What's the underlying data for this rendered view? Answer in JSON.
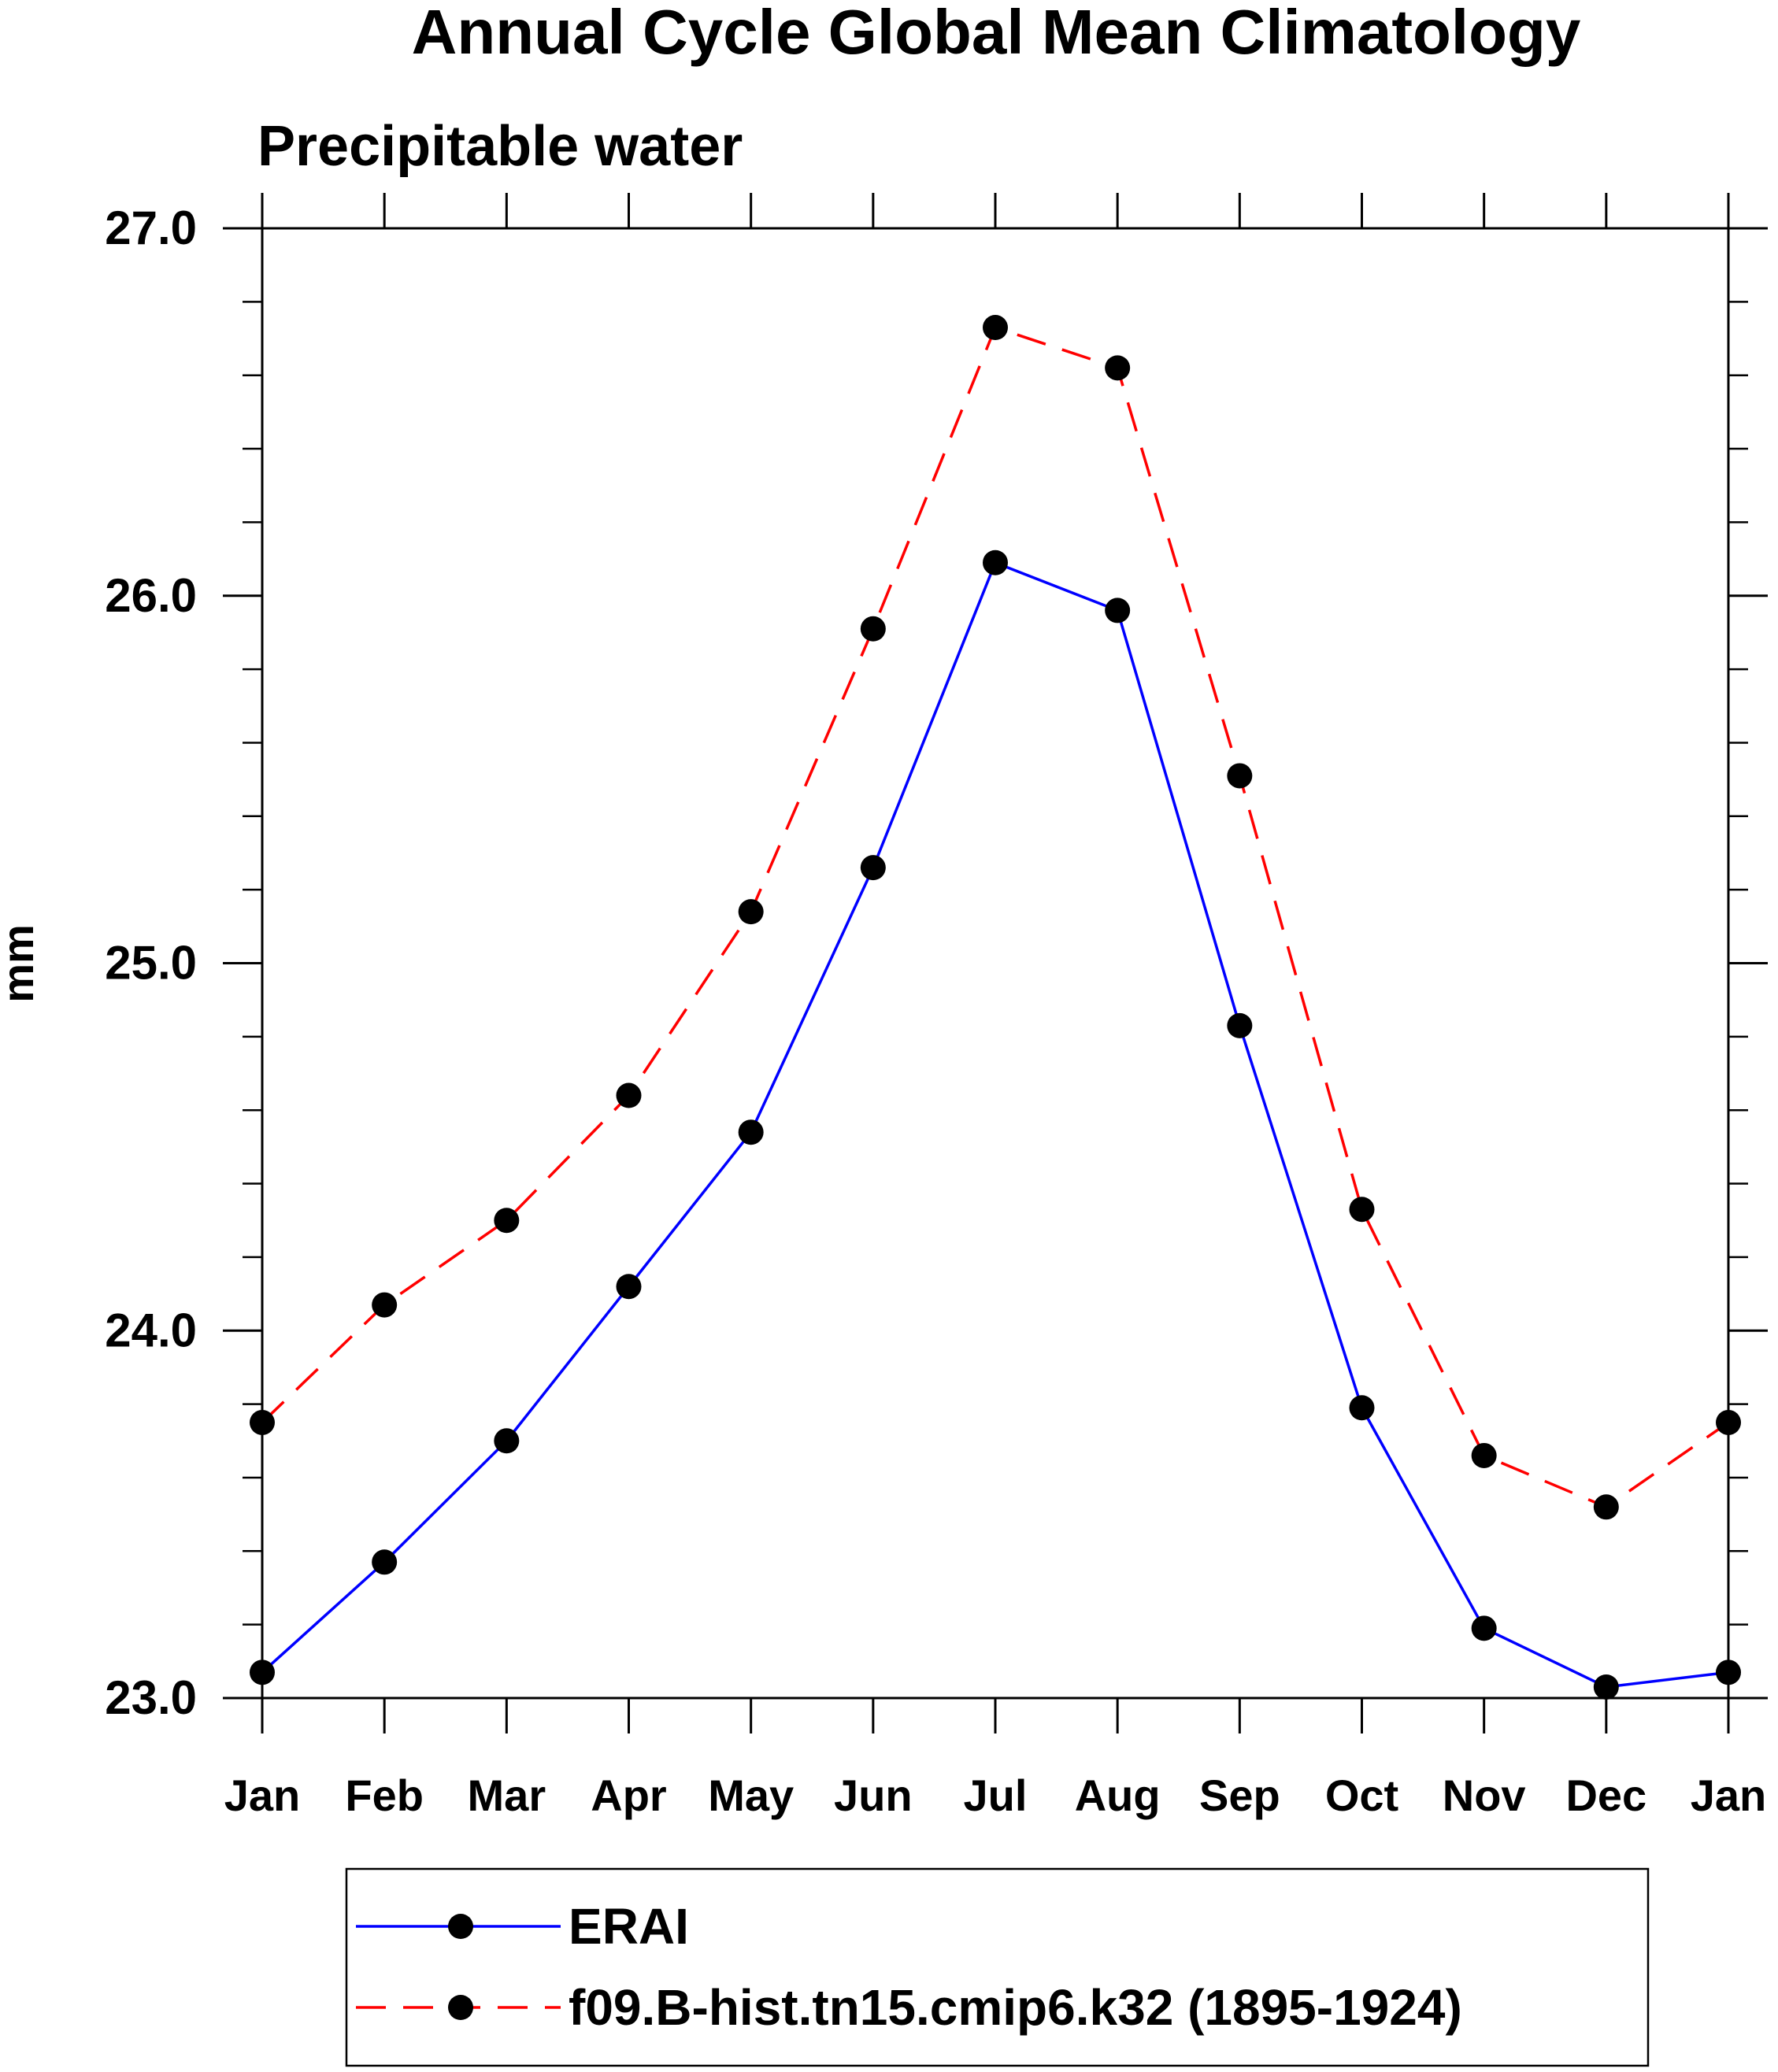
{
  "chart_data": {
    "type": "line",
    "title": "Annual Cycle Global Mean Climatology",
    "subtitle": "Precipitable water",
    "xlabel": "",
    "ylabel": "mm",
    "categories": [
      "Jan",
      "Feb",
      "Mar",
      "Apr",
      "May",
      "Jun",
      "Jul",
      "Aug",
      "Sep",
      "Oct",
      "Nov",
      "Dec",
      "Jan"
    ],
    "ylim": [
      23.0,
      27.0
    ],
    "y_ticks": [
      "23.0",
      "24.0",
      "25.0",
      "26.0",
      "27.0"
    ],
    "y_minor_step": 0.2,
    "grid": false,
    "legend_position": "bottom",
    "series": [
      {
        "name": "ERAI",
        "color": "#0000ff",
        "line_style": "solid",
        "marker": "filled-circle",
        "values": [
          23.07,
          23.37,
          23.7,
          24.12,
          24.54,
          25.26,
          26.09,
          25.96,
          24.83,
          23.79,
          23.19,
          23.03,
          23.07
        ]
      },
      {
        "name": "f09.B-hist.tn15.cmip6.k32 (1895-1924)",
        "color": "#ff0000",
        "line_style": "dashed",
        "marker": "filled-circle",
        "values": [
          23.75,
          24.07,
          24.3,
          24.64,
          25.14,
          25.91,
          26.73,
          26.62,
          25.51,
          24.33,
          23.66,
          23.52,
          23.75
        ]
      }
    ]
  }
}
